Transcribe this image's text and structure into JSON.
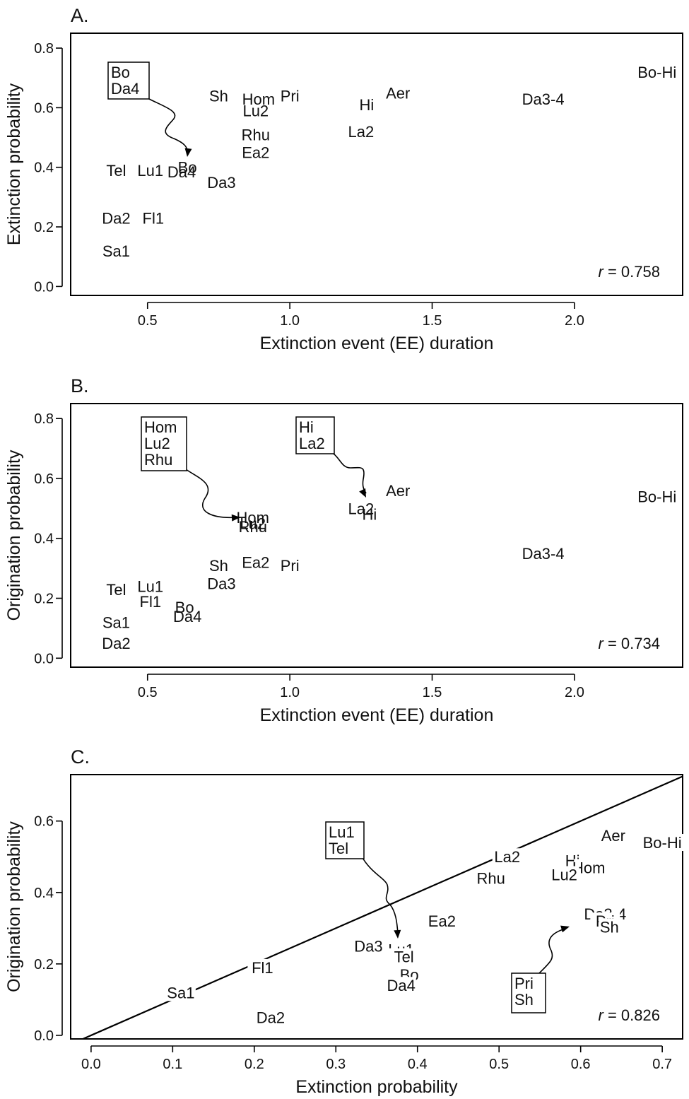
{
  "chart_data": [
    {
      "type": "scatter",
      "panel_label": "A.",
      "xlabel": "Extinction event (EE) duration",
      "ylabel": "Extinction probability",
      "xlim": [
        0.23,
        2.38
      ],
      "ylim": [
        -0.03,
        0.85
      ],
      "xticks": [
        0.5,
        1.0,
        1.5,
        2.0
      ],
      "xtick_labels": [
        "0.5",
        "1.0",
        "1.5",
        "2.0"
      ],
      "yticks": [
        0.0,
        0.2,
        0.4,
        0.6,
        0.8
      ],
      "ytick_labels": [
        "0.0",
        "0.2",
        "0.4",
        "0.6",
        "0.8"
      ],
      "r_label": "r",
      "r_value": " = 0.758",
      "points": [
        {
          "label": "Bo-Hi",
          "x": 2.29,
          "y": 0.72
        },
        {
          "label": "Da3-4",
          "x": 1.89,
          "y": 0.63
        },
        {
          "label": "Aer",
          "x": 1.38,
          "y": 0.65
        },
        {
          "label": "Hi",
          "x": 1.27,
          "y": 0.61
        },
        {
          "label": "La2",
          "x": 1.25,
          "y": 0.52
        },
        {
          "label": "Sh",
          "x": 0.75,
          "y": 0.64
        },
        {
          "label": "Hom",
          "x": 0.89,
          "y": 0.63
        },
        {
          "label": "Pri",
          "x": 1.0,
          "y": 0.64
        },
        {
          "label": "Lu2",
          "x": 0.88,
          "y": 0.59
        },
        {
          "label": "Rhu",
          "x": 0.88,
          "y": 0.51
        },
        {
          "label": "Ea2",
          "x": 0.88,
          "y": 0.45
        },
        {
          "label": "Tel",
          "x": 0.39,
          "y": 0.39
        },
        {
          "label": "Lu1",
          "x": 0.51,
          "y": 0.39
        },
        {
          "label": "Bo",
          "x": 0.63,
          "y": 0.4
        },
        {
          "label": "Da4",
          "x": 0.62,
          "y": 0.39
        },
        {
          "label": "Da3",
          "x": 0.76,
          "y": 0.35
        },
        {
          "label": "Da2",
          "x": 0.39,
          "y": 0.23
        },
        {
          "label": "Fl1",
          "x": 0.52,
          "y": 0.23
        },
        {
          "label": "Sa1",
          "x": 0.39,
          "y": 0.12
        }
      ],
      "callouts": [
        {
          "lines": [
            "Bo",
            "Da4"
          ]
        }
      ]
    },
    {
      "type": "scatter",
      "panel_label": "B.",
      "xlabel": "Extinction event (EE) duration",
      "ylabel": "Origination probability",
      "xlim": [
        0.23,
        2.38
      ],
      "ylim": [
        -0.03,
        0.85
      ],
      "xticks": [
        0.5,
        1.0,
        1.5,
        2.0
      ],
      "xtick_labels": [
        "0.5",
        "1.0",
        "1.5",
        "2.0"
      ],
      "yticks": [
        0.0,
        0.2,
        0.4,
        0.6,
        0.8
      ],
      "ytick_labels": [
        "0.0",
        "0.2",
        "0.4",
        "0.6",
        "0.8"
      ],
      "r_label": "r",
      "r_value": " = 0.734",
      "points": [
        {
          "label": "Bo-Hi",
          "x": 2.29,
          "y": 0.54
        },
        {
          "label": "Da3-4",
          "x": 1.89,
          "y": 0.35
        },
        {
          "label": "Aer",
          "x": 1.38,
          "y": 0.56
        },
        {
          "label": "La2",
          "x": 1.25,
          "y": 0.5
        },
        {
          "label": "Hi",
          "x": 1.27,
          "y": 0.49
        },
        {
          "label": "Hom",
          "x": 0.87,
          "y": 0.47
        },
        {
          "label": "Lu2",
          "x": 0.87,
          "y": 0.45
        },
        {
          "label": "Rhu",
          "x": 0.87,
          "y": 0.44
        },
        {
          "label": "Sh",
          "x": 0.75,
          "y": 0.31
        },
        {
          "label": "Ea2",
          "x": 0.88,
          "y": 0.32
        },
        {
          "label": "Pri",
          "x": 1.0,
          "y": 0.31
        },
        {
          "label": "Da3",
          "x": 0.76,
          "y": 0.25
        },
        {
          "label": "Tel",
          "x": 0.39,
          "y": 0.23
        },
        {
          "label": "Lu1",
          "x": 0.51,
          "y": 0.24
        },
        {
          "label": "Fl1",
          "x": 0.51,
          "y": 0.19
        },
        {
          "label": "Bo",
          "x": 0.63,
          "y": 0.17
        },
        {
          "label": "Da4",
          "x": 0.64,
          "y": 0.14
        },
        {
          "label": "Sa1",
          "x": 0.39,
          "y": 0.12
        },
        {
          "label": "Da2",
          "x": 0.39,
          "y": 0.05
        }
      ],
      "callouts": [
        {
          "lines": [
            "Hom",
            "Lu2",
            "Rhu"
          ]
        },
        {
          "lines": [
            "Hi",
            "La2"
          ]
        }
      ]
    },
    {
      "type": "scatter",
      "panel_label": "C.",
      "xlabel": "Extinction probability",
      "ylabel": "Origination probability",
      "xlim": [
        -0.025,
        0.725
      ],
      "ylim": [
        -0.01,
        0.73
      ],
      "xticks": [
        0.0,
        0.1,
        0.2,
        0.3,
        0.4,
        0.5,
        0.6,
        0.7
      ],
      "xtick_labels": [
        "0.0",
        "0.1",
        "0.2",
        "0.3",
        "0.4",
        "0.5",
        "0.6",
        "0.7"
      ],
      "yticks": [
        0.0,
        0.2,
        0.4,
        0.6
      ],
      "ytick_labels": [
        "0.0",
        "0.2",
        "0.4",
        "0.6"
      ],
      "r_label": "r",
      "r_value": " = 0.826",
      "reference_line": "y = x",
      "points": [
        {
          "label": "Aer",
          "x": 0.64,
          "y": 0.56
        },
        {
          "label": "Bo-Hi",
          "x": 0.7,
          "y": 0.54
        },
        {
          "label": "La2",
          "x": 0.51,
          "y": 0.5
        },
        {
          "label": "Hi",
          "x": 0.59,
          "y": 0.49
        },
        {
          "label": "Hom",
          "x": 0.61,
          "y": 0.47
        },
        {
          "label": "Lu2",
          "x": 0.58,
          "y": 0.45
        },
        {
          "label": "Rhu",
          "x": 0.49,
          "y": 0.44
        },
        {
          "label": "Da3-4",
          "x": 0.63,
          "y": 0.34
        },
        {
          "label": "Pri",
          "x": 0.63,
          "y": 0.32
        },
        {
          "label": "Sh",
          "x": 0.63,
          "y": 0.31
        },
        {
          "label": "Ea2",
          "x": 0.43,
          "y": 0.32
        },
        {
          "label": "Da3",
          "x": 0.34,
          "y": 0.25
        },
        {
          "label": "Lu1",
          "x": 0.38,
          "y": 0.24
        },
        {
          "label": "Tel",
          "x": 0.38,
          "y": 0.23
        },
        {
          "label": "Bo",
          "x": 0.39,
          "y": 0.17
        },
        {
          "label": "Da4",
          "x": 0.38,
          "y": 0.14
        },
        {
          "label": "Fl1",
          "x": 0.21,
          "y": 0.19
        },
        {
          "label": "Sa1",
          "x": 0.11,
          "y": 0.12
        },
        {
          "label": "Da2",
          "x": 0.22,
          "y": 0.05
        }
      ],
      "callouts": [
        {
          "lines": [
            "Lu1",
            "Tel"
          ]
        },
        {
          "lines": [
            "Pri",
            "Sh"
          ]
        }
      ]
    }
  ]
}
